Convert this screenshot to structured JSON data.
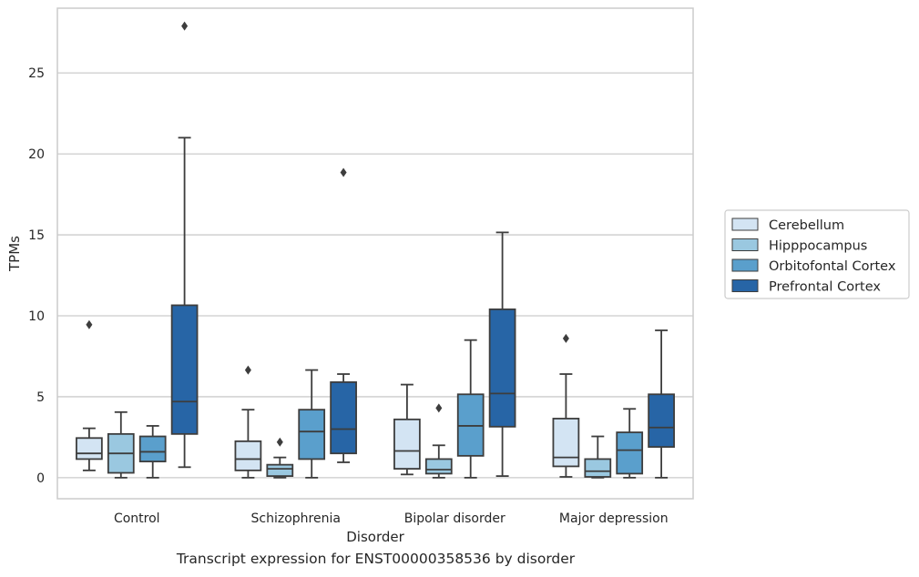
{
  "chart_data": {
    "type": "box",
    "title": "",
    "caption": "Transcript expression for ENST00000358536 by disorder",
    "xlabel": "Disorder",
    "ylabel": "TPMs",
    "ylim": [
      -1.3,
      29
    ],
    "yticks": [
      0,
      5,
      10,
      15,
      20,
      25
    ],
    "grid": "horizontal",
    "legend_placement": "right",
    "categories": [
      "Control",
      "Schizophrenia",
      "Bipolar disorder",
      "Major depression"
    ],
    "series": [
      {
        "name": "Cerebellum",
        "color": "#d3e4f3",
        "boxes": [
          {
            "whislo": 0.45,
            "q1": 1.15,
            "med": 1.5,
            "q3": 2.45,
            "whishi": 3.05,
            "fliers": [
              9.45
            ]
          },
          {
            "whislo": 0.0,
            "q1": 0.45,
            "med": 1.15,
            "q3": 2.25,
            "whishi": 4.2,
            "fliers": [
              6.65
            ]
          },
          {
            "whislo": 0.2,
            "q1": 0.55,
            "med": 1.65,
            "q3": 3.6,
            "whishi": 5.75,
            "fliers": []
          },
          {
            "whislo": 0.05,
            "q1": 0.7,
            "med": 1.25,
            "q3": 3.65,
            "whishi": 6.4,
            "fliers": [
              8.6
            ]
          }
        ]
      },
      {
        "name": "Hipppocampus",
        "color": "#9ac8e0",
        "boxes": [
          {
            "whislo": 0.0,
            "q1": 0.3,
            "med": 1.5,
            "q3": 2.7,
            "whishi": 4.05,
            "fliers": []
          },
          {
            "whislo": 0.0,
            "q1": 0.1,
            "med": 0.55,
            "q3": 0.8,
            "whishi": 1.25,
            "fliers": [
              2.2
            ]
          },
          {
            "whislo": 0.0,
            "q1": 0.25,
            "med": 0.5,
            "q3": 1.15,
            "whishi": 2.0,
            "fliers": [
              4.3
            ]
          },
          {
            "whislo": 0.0,
            "q1": 0.05,
            "med": 0.4,
            "q3": 1.15,
            "whishi": 2.55,
            "fliers": []
          }
        ]
      },
      {
        "name": "Orbitofontal Cortex",
        "color": "#5a9fcc",
        "boxes": [
          {
            "whislo": 0.0,
            "q1": 1.0,
            "med": 1.6,
            "q3": 2.55,
            "whishi": 3.2,
            "fliers": []
          },
          {
            "whislo": 0.0,
            "q1": 1.15,
            "med": 2.85,
            "q3": 4.2,
            "whishi": 6.65,
            "fliers": []
          },
          {
            "whislo": 0.0,
            "q1": 1.35,
            "med": 3.2,
            "q3": 5.15,
            "whishi": 8.5,
            "fliers": []
          },
          {
            "whislo": 0.0,
            "q1": 0.25,
            "med": 1.7,
            "q3": 2.8,
            "whishi": 4.25,
            "fliers": []
          }
        ]
      },
      {
        "name": "Prefrontal Cortex",
        "color": "#2765a6",
        "boxes": [
          {
            "whislo": 0.65,
            "q1": 2.7,
            "med": 4.7,
            "q3": 10.65,
            "whishi": 21.0,
            "fliers": [
              27.9
            ]
          },
          {
            "whislo": 0.95,
            "q1": 1.5,
            "med": 3.0,
            "q3": 5.9,
            "whishi": 6.4,
            "fliers": [
              18.85
            ]
          },
          {
            "whislo": 0.1,
            "q1": 3.15,
            "med": 5.2,
            "q3": 10.4,
            "whishi": 15.15,
            "fliers": []
          },
          {
            "whislo": 0.0,
            "q1": 1.9,
            "med": 3.1,
            "q3": 5.15,
            "whishi": 9.1,
            "fliers": []
          }
        ]
      }
    ]
  }
}
